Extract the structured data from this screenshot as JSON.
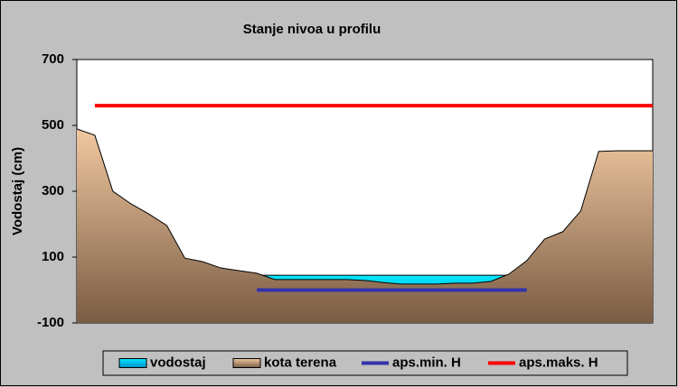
{
  "chart_data": {
    "type": "line",
    "title": "Stanje nivoa u profilu",
    "ylabel": "Vodostaj (cm)",
    "categories": [
      null,
      null,
      null,
      null,
      null,
      null,
      null,
      null,
      null,
      null,
      null,
      null,
      null,
      null,
      null,
      null,
      null,
      null,
      null,
      null,
      null,
      null,
      null,
      null,
      null,
      null,
      null,
      null,
      null,
      null,
      null,
      null,
      null
    ],
    "ylim": [
      -100,
      700
    ],
    "yticks": [
      -100,
      100,
      300,
      500,
      700
    ],
    "series": [
      {
        "name": "vodostaj",
        "kind": "area",
        "color": "#00c8f0",
        "values": [
          null,
          null,
          null,
          null,
          null,
          null,
          null,
          null,
          null,
          null,
          45,
          45,
          45,
          45,
          45,
          45,
          45,
          45,
          45,
          45,
          45,
          45,
          45,
          45,
          45,
          45,
          null,
          null,
          null,
          null,
          null,
          null,
          null
        ]
      },
      {
        "name": "kota terena",
        "kind": "area",
        "color": "#c8a080",
        "values": [
          489,
          470,
          300,
          262,
          231,
          196,
          97,
          86,
          67,
          59,
          51,
          32,
          32,
          32,
          32,
          32,
          29,
          23,
          18,
          18,
          18,
          21,
          21,
          26,
          48,
          89,
          155,
          177,
          240,
          421,
          423,
          423,
          423
        ]
      },
      {
        "name": "aps.min. H",
        "kind": "line",
        "color": "#3333aa",
        "values": [
          null,
          null,
          null,
          null,
          null,
          null,
          null,
          null,
          null,
          null,
          0,
          0,
          0,
          0,
          0,
          0,
          0,
          0,
          0,
          0,
          0,
          0,
          0,
          0,
          0,
          0,
          null,
          null,
          null,
          null,
          null,
          null,
          null
        ]
      },
      {
        "name": "aps.maks. H",
        "kind": "line",
        "color": "#ff0000",
        "values": [
          null,
          560,
          560,
          560,
          560,
          560,
          560,
          560,
          560,
          560,
          560,
          560,
          560,
          560,
          560,
          560,
          560,
          560,
          560,
          560,
          560,
          560,
          560,
          560,
          560,
          560,
          560,
          560,
          560,
          560,
          560,
          560,
          560
        ]
      }
    ]
  }
}
